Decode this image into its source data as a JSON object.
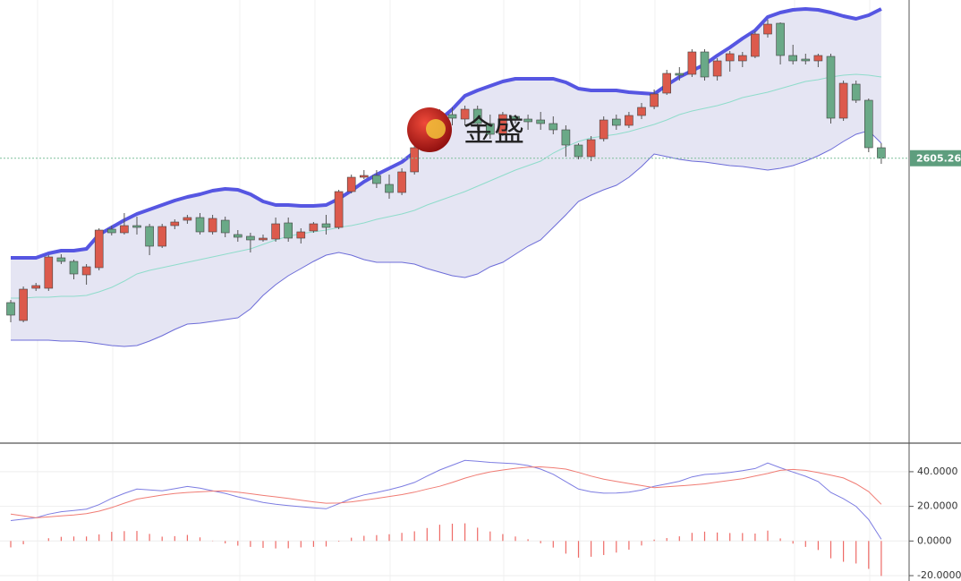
{
  "chart_data": [
    {
      "type": "candlestick",
      "ylim": [
        2287,
        2782
      ],
      "up_color": "#dc5a4c",
      "down_color": "#6aa987",
      "band_fill": "#e5e5f3",
      "upper_color": "#5656e2",
      "middle_color": "#8fdccb",
      "lower_color": "#6c6cd8",
      "watermark": "金盛",
      "last_price": {
        "value": 2605.26,
        "label": "2605.260"
      },
      "ohlc": [
        [
          2444,
          2447,
          2422,
          2430
        ],
        [
          2424,
          2462,
          2422,
          2459
        ],
        [
          2460,
          2466,
          2457,
          2463
        ],
        [
          2460,
          2497,
          2457,
          2495
        ],
        [
          2494,
          2498,
          2487,
          2490
        ],
        [
          2490,
          2492,
          2470,
          2476
        ],
        [
          2475,
          2487,
          2464,
          2484
        ],
        [
          2483,
          2527,
          2480,
          2525
        ],
        [
          2526,
          2530,
          2519,
          2522
        ],
        [
          2522,
          2544,
          2520,
          2530
        ],
        [
          2530,
          2540,
          2520,
          2528
        ],
        [
          2529,
          2532,
          2497,
          2507
        ],
        [
          2507,
          2532,
          2505,
          2529
        ],
        [
          2530,
          2537,
          2526,
          2534
        ],
        [
          2536,
          2542,
          2532,
          2539
        ],
        [
          2539,
          2544,
          2520,
          2523
        ],
        [
          2523,
          2542,
          2520,
          2538
        ],
        [
          2536,
          2540,
          2517,
          2522
        ],
        [
          2520,
          2525,
          2512,
          2517
        ],
        [
          2518,
          2522,
          2500,
          2514
        ],
        [
          2514,
          2520,
          2512,
          2516
        ],
        [
          2515,
          2539,
          2512,
          2532
        ],
        [
          2533,
          2539,
          2512,
          2516
        ],
        [
          2516,
          2527,
          2510,
          2523
        ],
        [
          2524,
          2534,
          2522,
          2532
        ],
        [
          2532,
          2542,
          2520,
          2528
        ],
        [
          2528,
          2570,
          2526,
          2568
        ],
        [
          2568,
          2587,
          2566,
          2584
        ],
        [
          2584,
          2592,
          2582,
          2586
        ],
        [
          2586,
          2592,
          2572,
          2577
        ],
        [
          2576,
          2587,
          2560,
          2567
        ],
        [
          2567,
          2594,
          2564,
          2590
        ],
        [
          2590,
          2622,
          2587,
          2617
        ],
        [
          2622,
          2652,
          2617,
          2647
        ],
        [
          2647,
          2660,
          2632,
          2654
        ],
        [
          2654,
          2662,
          2642,
          2650
        ],
        [
          2649,
          2664,
          2642,
          2660
        ],
        [
          2660,
          2664,
          2637,
          2644
        ],
        [
          2644,
          2654,
          2627,
          2632
        ],
        [
          2632,
          2657,
          2630,
          2654
        ],
        [
          2652,
          2654,
          2644,
          2648
        ],
        [
          2649,
          2654,
          2637,
          2646
        ],
        [
          2648,
          2657,
          2637,
          2644
        ],
        [
          2644,
          2652,
          2632,
          2637
        ],
        [
          2637,
          2642,
          2607,
          2620
        ],
        [
          2620,
          2622,
          2604,
          2607
        ],
        [
          2607,
          2630,
          2602,
          2626
        ],
        [
          2627,
          2652,
          2624,
          2648
        ],
        [
          2649,
          2654,
          2637,
          2642
        ],
        [
          2642,
          2657,
          2639,
          2653
        ],
        [
          2653,
          2667,
          2649,
          2662
        ],
        [
          2663,
          2682,
          2660,
          2677
        ],
        [
          2678,
          2704,
          2676,
          2700
        ],
        [
          2700,
          2707,
          2692,
          2698
        ],
        [
          2699,
          2727,
          2696,
          2724
        ],
        [
          2724,
          2727,
          2692,
          2696
        ],
        [
          2697,
          2717,
          2692,
          2714
        ],
        [
          2714,
          2725,
          2702,
          2722
        ],
        [
          2714,
          2724,
          2707,
          2720
        ],
        [
          2719,
          2747,
          2717,
          2744
        ],
        [
          2744,
          2760,
          2740,
          2755
        ],
        [
          2756,
          2757,
          2710,
          2720
        ],
        [
          2720,
          2732,
          2710,
          2714
        ],
        [
          2716,
          2722,
          2710,
          2714
        ],
        [
          2714,
          2722,
          2707,
          2720
        ],
        [
          2719,
          2722,
          2644,
          2650
        ],
        [
          2650,
          2692,
          2647,
          2689
        ],
        [
          2688,
          2692,
          2667,
          2670
        ],
        [
          2670,
          2672,
          2612,
          2617
        ],
        [
          2617,
          2622,
          2599,
          2605.26
        ]
      ],
      "upper": [
        2494,
        2494,
        2494,
        2499,
        2502,
        2502,
        2504,
        2520,
        2528,
        2536,
        2543,
        2548,
        2553,
        2558,
        2562,
        2565,
        2569,
        2571,
        2570,
        2565,
        2557,
        2553,
        2553,
        2552,
        2552,
        2553,
        2560,
        2569,
        2579,
        2587,
        2594,
        2601,
        2612,
        2632,
        2648,
        2660,
        2675,
        2681,
        2686,
        2691,
        2694,
        2694,
        2694,
        2694,
        2690,
        2683,
        2681,
        2681,
        2681,
        2679,
        2678,
        2677,
        2687,
        2696,
        2703,
        2710,
        2720,
        2729,
        2739,
        2748,
        2763,
        2768,
        2771,
        2772,
        2771,
        2768,
        2764,
        2761,
        2765,
        2772
      ],
      "middle": [
        2449,
        2449,
        2450,
        2450,
        2451,
        2451,
        2452,
        2456,
        2461,
        2468,
        2476,
        2480,
        2483,
        2486,
        2489,
        2492,
        2495,
        2498,
        2501,
        2504,
        2509,
        2514,
        2518,
        2521,
        2523,
        2525,
        2528,
        2530,
        2533,
        2537,
        2540,
        2543,
        2547,
        2553,
        2558,
        2563,
        2568,
        2574,
        2580,
        2586,
        2592,
        2597,
        2602,
        2611,
        2618,
        2624,
        2628,
        2630,
        2632,
        2635,
        2639,
        2643,
        2648,
        2654,
        2658,
        2661,
        2664,
        2668,
        2673,
        2676,
        2679,
        2683,
        2687,
        2691,
        2693,
        2696,
        2698,
        2699,
        2698,
        2696
      ],
      "lower": [
        2402,
        2402,
        2402,
        2402,
        2401,
        2401,
        2400,
        2398,
        2396,
        2395,
        2396,
        2401,
        2407,
        2414,
        2420,
        2421,
        2423,
        2425,
        2427,
        2437,
        2452,
        2464,
        2474,
        2482,
        2490,
        2497,
        2500,
        2497,
        2492,
        2489,
        2489,
        2489,
        2487,
        2482,
        2478,
        2474,
        2472,
        2476,
        2484,
        2489,
        2498,
        2507,
        2514,
        2528,
        2542,
        2557,
        2564,
        2570,
        2575,
        2584,
        2596,
        2610,
        2607,
        2604,
        2602,
        2601,
        2599,
        2597,
        2596,
        2594,
        2592,
        2594,
        2597,
        2602,
        2608,
        2615,
        2624,
        2632,
        2636,
        2622
      ]
    },
    {
      "type": "macd",
      "ylim": [
        -23.1,
        56.5
      ],
      "yticks": [
        {
          "value": 40,
          "label": "40.0000"
        },
        {
          "value": 20,
          "label": "20.0000"
        },
        {
          "value": 0,
          "label": "0.0000"
        },
        {
          "value": -20,
          "label": "-20.0000"
        }
      ],
      "series": [
        {
          "color": "#7d7de2",
          "values": [
            11.8,
            12.6,
            13.4,
            15.5,
            16.9,
            17.6,
            18.4,
            21,
            24.6,
            27.5,
            30,
            29.5,
            29,
            30.2,
            31.5,
            30.5,
            29,
            27.5,
            25.5,
            23.9,
            22.3,
            21.2,
            20.4,
            19.8,
            19.2,
            18.6,
            21.5,
            24.5,
            26.6,
            28,
            29.6,
            31.5,
            33.8,
            37.5,
            41,
            43.8,
            46.5,
            46,
            45.4,
            45,
            44.6,
            43.6,
            41.5,
            38.5,
            34.2,
            30,
            28.4,
            27.6,
            27.7,
            28.2,
            29.4,
            31.6,
            33,
            34.5,
            37,
            38.4,
            38.9,
            39.6,
            40.6,
            41.8,
            45,
            42.3,
            39.8,
            37.4,
            34.3,
            28,
            24.4,
            20,
            12.4,
            1
          ]
        },
        {
          "color": "#f07c74",
          "values": [
            15.5,
            14.5,
            13.4,
            13.9,
            14.5,
            15,
            15.8,
            17.2,
            19.3,
            21.8,
            24.2,
            25.4,
            26.5,
            27.4,
            28,
            28.4,
            28.8,
            28.9,
            28.2,
            27.3,
            26.3,
            25.5,
            24.6,
            23.5,
            22.6,
            21.8,
            21.9,
            22.6,
            23.6,
            24.6,
            25.7,
            26.8,
            28.2,
            30,
            31.6,
            33.8,
            36.3,
            38.3,
            39.9,
            41,
            42,
            42.6,
            42.8,
            42.3,
            41.5,
            39.6,
            37.5,
            35.7,
            34.4,
            33.2,
            32,
            30.8,
            31.3,
            31.8,
            32.3,
            33,
            34,
            35,
            36,
            37.5,
            39,
            40.8,
            41.3,
            40.8,
            39.5,
            38,
            36.4,
            33,
            28.5,
            21.2
          ]
        }
      ],
      "histogram": {
        "color": "#ee6a66",
        "values": [
          -3.7,
          -1.9,
          0,
          1.6,
          2.4,
          2.6,
          2.6,
          3.8,
          5.3,
          5.7,
          5.8,
          4.1,
          2.5,
          2.8,
          3.5,
          2.1,
          0.2,
          -1.4,
          -2.7,
          -3.4,
          -4,
          -4.3,
          -4.2,
          -3.7,
          -3.4,
          -3.2,
          -0.4,
          1.9,
          3,
          3.4,
          3.9,
          4.7,
          5.6,
          7.5,
          9.4,
          10,
          10.2,
          7.7,
          5.5,
          4,
          2.6,
          1,
          -1.3,
          -3.8,
          -7.3,
          -9.6,
          -9.1,
          -8.1,
          -6.7,
          -5,
          -2.6,
          0.8,
          1.7,
          2.7,
          4.7,
          5.4,
          4.9,
          4.6,
          4.6,
          4.3,
          6,
          1.5,
          -1.5,
          -3.4,
          -5.2,
          -10,
          -12,
          -13,
          -16.1,
          -20.2
        ]
      }
    }
  ]
}
